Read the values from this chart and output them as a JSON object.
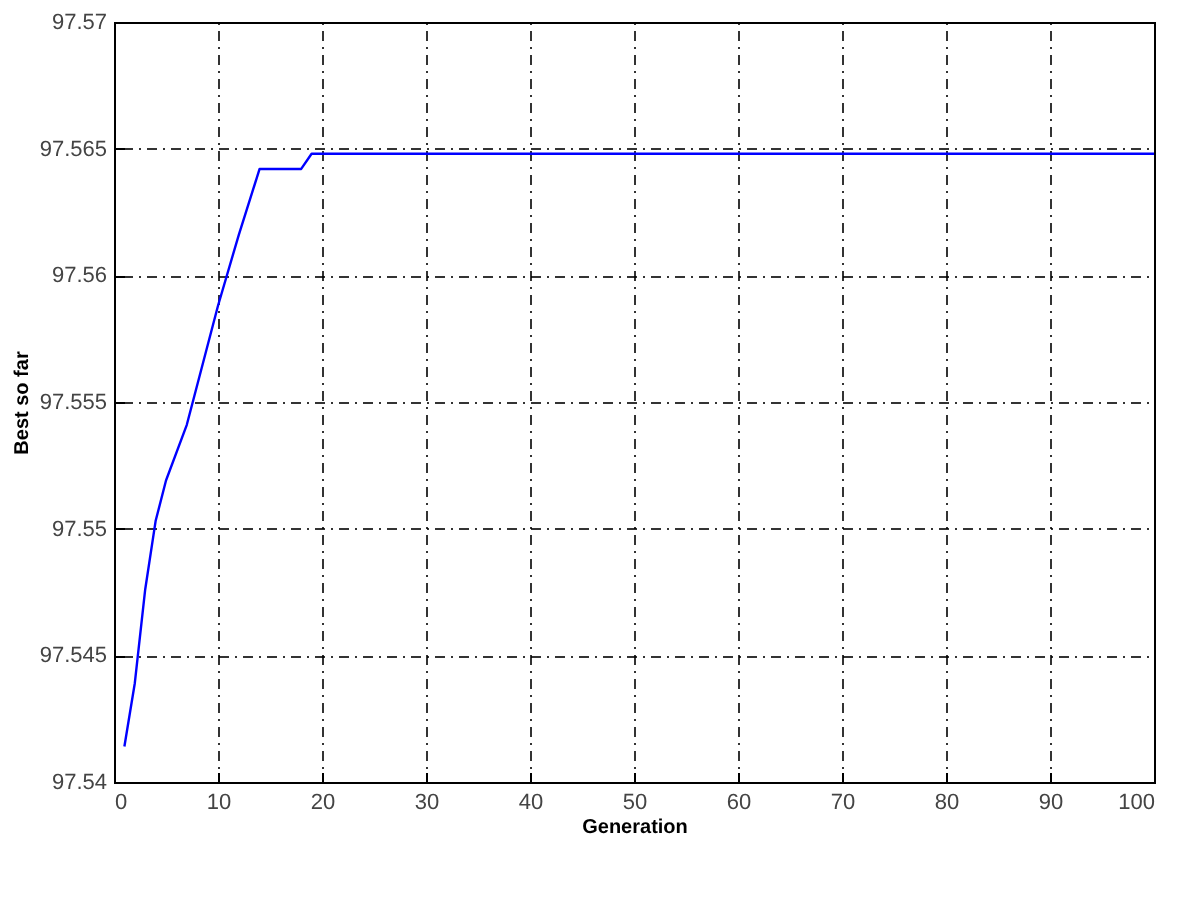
{
  "chart_data": {
    "type": "line",
    "xlabel": "Generation",
    "ylabel": "Best so far",
    "x": [
      1,
      2,
      3,
      4,
      5,
      7,
      10,
      12,
      14,
      18,
      19,
      100
    ],
    "series": [
      {
        "color": "#0000ff",
        "values": [
          97.5414,
          97.5439,
          97.5476,
          97.5503,
          97.5519,
          97.5541,
          97.5588,
          97.5616,
          97.5642,
          97.5642,
          97.5648,
          97.5648
        ]
      }
    ],
    "xlim": [
      0,
      100
    ],
    "xticks": [
      0,
      10,
      20,
      30,
      40,
      50,
      60,
      70,
      80,
      90,
      100
    ],
    "ylim": [
      97.54,
      97.57
    ],
    "yticks": [
      97.54,
      97.545,
      97.55,
      97.555,
      97.56,
      97.565,
      97.57
    ],
    "grid": true,
    "legend": false,
    "marker": "none",
    "line_style": "solid"
  }
}
